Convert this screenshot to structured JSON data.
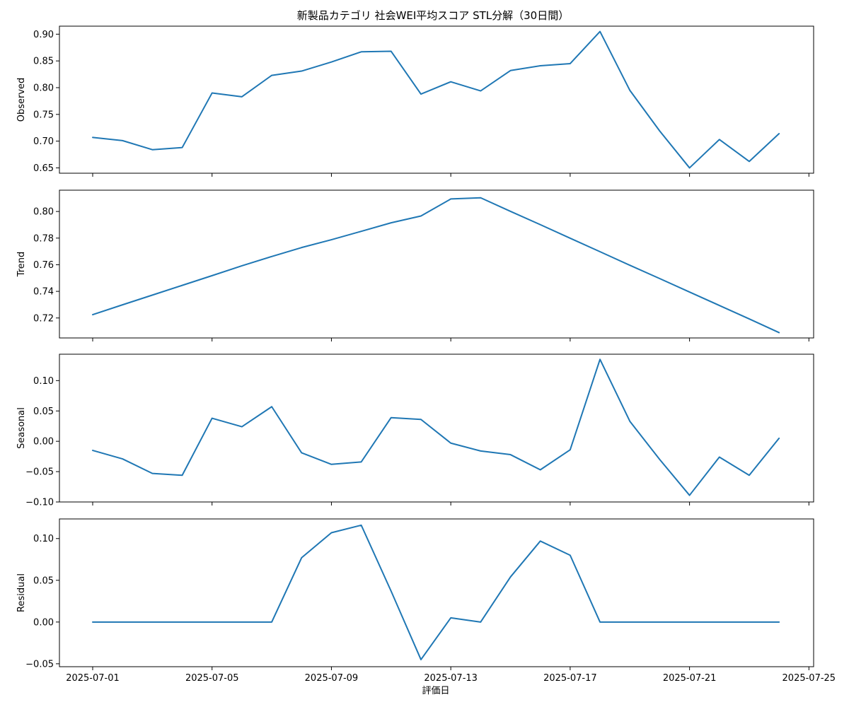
{
  "figure": {
    "title": "新製品カテゴリ 社会WEI平均スコア STL分解（30日間）",
    "xlabel": "評価日"
  },
  "colors": {
    "line": "#1f77b4"
  },
  "chart_data": [
    {
      "type": "line",
      "ylabel": "Observed",
      "ylim": [
        0.64,
        0.915
      ],
      "yticks": [
        "0.65",
        "0.70",
        "0.75",
        "0.80",
        "0.85",
        "0.90"
      ],
      "xticks": [],
      "x": [
        "2025-07-01",
        "2025-07-02",
        "2025-07-03",
        "2025-07-04",
        "2025-07-05",
        "2025-07-06",
        "2025-07-07",
        "2025-07-08",
        "2025-07-09",
        "2025-07-10",
        "2025-07-11",
        "2025-07-12",
        "2025-07-13",
        "2025-07-14",
        "2025-07-15",
        "2025-07-16",
        "2025-07-17",
        "2025-07-18",
        "2025-07-19",
        "2025-07-20",
        "2025-07-21",
        "2025-07-22",
        "2025-07-23",
        "2025-07-24"
      ],
      "series": [
        {
          "values": [
            0.707,
            0.701,
            0.684,
            0.688,
            0.79,
            0.783,
            0.823,
            0.831,
            0.848,
            0.867,
            0.868,
            0.788,
            0.811,
            0.794,
            0.832,
            0.841,
            0.845,
            0.905,
            0.795,
            0.719,
            0.65,
            0.703,
            0.662,
            0.714
          ]
        }
      ]
    },
    {
      "type": "line",
      "ylabel": "Trend",
      "ylim": [
        0.705,
        0.816
      ],
      "yticks": [
        "0.72",
        "0.74",
        "0.76",
        "0.78",
        "0.80"
      ],
      "xticks": [],
      "x": [
        "2025-07-01",
        "2025-07-02",
        "2025-07-03",
        "2025-07-04",
        "2025-07-05",
        "2025-07-06",
        "2025-07-07",
        "2025-07-08",
        "2025-07-09",
        "2025-07-10",
        "2025-07-11",
        "2025-07-12",
        "2025-07-13",
        "2025-07-14",
        "2025-07-15",
        "2025-07-16",
        "2025-07-17",
        "2025-07-18",
        "2025-07-19",
        "2025-07-20",
        "2025-07-21",
        "2025-07-22",
        "2025-07-23",
        "2025-07-24"
      ],
      "series": [
        {
          "values": [
            0.7225,
            0.7299,
            0.7372,
            0.7445,
            0.7518,
            0.7592,
            0.7662,
            0.7729,
            0.7788,
            0.7851,
            0.7915,
            0.7966,
            0.8094,
            0.8103,
            0.8001,
            0.7901,
            0.7799,
            0.7698,
            0.7596,
            0.7496,
            0.7395,
            0.7294,
            0.7193,
            0.709
          ]
        }
      ]
    },
    {
      "type": "line",
      "ylabel": "Seasonal",
      "ylim": [
        -0.1,
        0.1435
      ],
      "yticks": [
        "−0.10",
        "−0.05",
        "0.00",
        "0.05",
        "0.10"
      ],
      "xticks": [],
      "x": [
        "2025-07-01",
        "2025-07-02",
        "2025-07-03",
        "2025-07-04",
        "2025-07-05",
        "2025-07-06",
        "2025-07-07",
        "2025-07-08",
        "2025-07-09",
        "2025-07-10",
        "2025-07-11",
        "2025-07-12",
        "2025-07-13",
        "2025-07-14",
        "2025-07-15",
        "2025-07-16",
        "2025-07-17",
        "2025-07-18",
        "2025-07-19",
        "2025-07-20",
        "2025-07-21",
        "2025-07-22",
        "2025-07-23",
        "2025-07-24"
      ],
      "series": [
        {
          "values": [
            -0.015,
            -0.029,
            -0.053,
            -0.056,
            0.038,
            0.024,
            0.057,
            -0.019,
            -0.038,
            -0.034,
            0.039,
            0.036,
            -0.003,
            -0.016,
            -0.022,
            -0.047,
            -0.014,
            0.135,
            0.033,
            -0.03,
            -0.089,
            -0.026,
            -0.056,
            0.005
          ]
        }
      ]
    },
    {
      "type": "line",
      "ylabel": "Residual",
      "ylim": [
        -0.0535,
        0.1235
      ],
      "yticks": [
        "−0.05",
        "0.00",
        "0.05",
        "0.10"
      ],
      "xticks": [
        "2025-07-01",
        "2025-07-05",
        "2025-07-09",
        "2025-07-13",
        "2025-07-17",
        "2025-07-21",
        "2025-07-25"
      ],
      "x": [
        "2025-07-01",
        "2025-07-02",
        "2025-07-03",
        "2025-07-04",
        "2025-07-05",
        "2025-07-06",
        "2025-07-07",
        "2025-07-08",
        "2025-07-09",
        "2025-07-10",
        "2025-07-11",
        "2025-07-12",
        "2025-07-13",
        "2025-07-14",
        "2025-07-15",
        "2025-07-16",
        "2025-07-17",
        "2025-07-18",
        "2025-07-19",
        "2025-07-20",
        "2025-07-21",
        "2025-07-22",
        "2025-07-23",
        "2025-07-24"
      ],
      "series": [
        {
          "values": [
            0.0,
            0.0,
            0.0,
            0.0,
            0.0,
            0.0,
            0.0,
            0.077,
            0.107,
            0.116,
            0.037,
            -0.045,
            0.005,
            0.0,
            0.054,
            0.097,
            0.08,
            0.0,
            0.0,
            0.0,
            0.0,
            0.0,
            0.0,
            0.0
          ]
        }
      ]
    }
  ]
}
